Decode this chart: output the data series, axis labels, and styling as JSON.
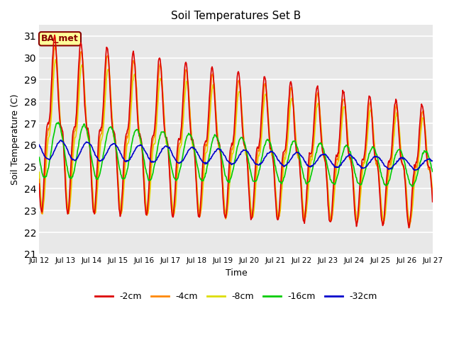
{
  "title": "Soil Temperatures Set B",
  "xlabel": "Time",
  "ylabel": "Soil Temperature (C)",
  "ylim": [
    21.0,
    31.5
  ],
  "yticks": [
    21.0,
    22.0,
    23.0,
    24.0,
    25.0,
    26.0,
    27.0,
    28.0,
    29.0,
    30.0,
    31.0
  ],
  "colors": {
    "-2cm": "#dd0000",
    "-4cm": "#ff8800",
    "-8cm": "#dddd00",
    "-16cm": "#00cc00",
    "-32cm": "#0000cc"
  },
  "annotation_text": "BA_met",
  "annotation_color": "#880000",
  "annotation_bg": "#ffff99",
  "num_days": 15,
  "start_day": 12,
  "points_per_day": 48,
  "background_color": "#e8e8e8",
  "grid_color": "#ffffff",
  "legend_entries": [
    "-2cm",
    "-4cm",
    "-8cm",
    "-16cm",
    "-32cm"
  ]
}
